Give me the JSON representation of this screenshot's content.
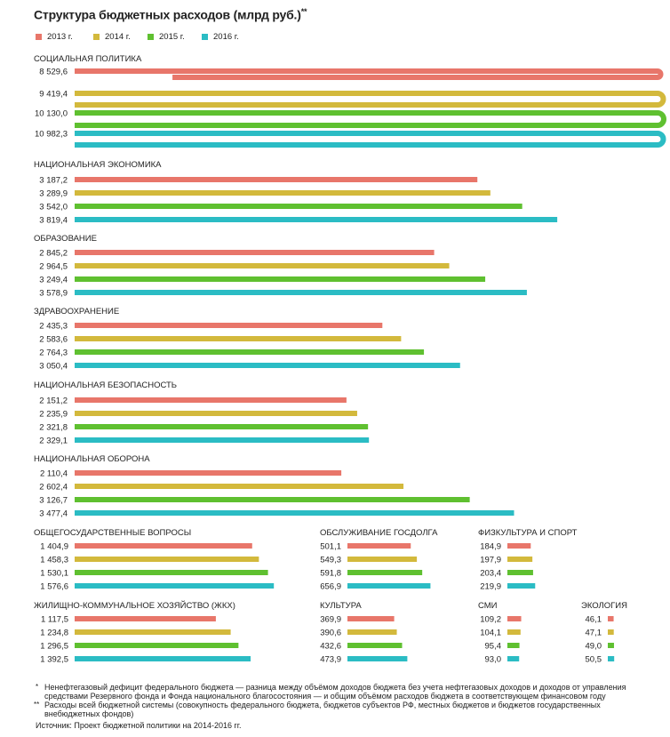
{
  "title": "Структура бюджетных расходов (млрд руб.)",
  "title_mark": "**",
  "colors": [
    "#e8766a",
    "#d3b93c",
    "#5fc030",
    "#2bbcc4"
  ],
  "chart_data": {
    "type": "bar",
    "title": "Структура бюджетных расходов (млрд руб.)",
    "unit": "млрд руб.",
    "legend": [
      "2013 г.",
      "2014 г.",
      "2015 г.",
      "2016 г."
    ],
    "groups": [
      {
        "name": "СОЦИАЛЬНАЯ ПОЛИТИКА",
        "values": [
          8529.6,
          9419.4,
          10130.0,
          10982.3
        ],
        "labels": [
          "8 529,6",
          "9 419,4",
          "10 130,0",
          "10 982,3"
        ]
      },
      {
        "name": "НАЦИОНАЛЬНАЯ ЭКОНОМИКА",
        "values": [
          3187.2,
          3289.9,
          3542.0,
          3819.4
        ],
        "labels": [
          "3 187,2",
          "3 289,9",
          "3 542,0",
          "3 819,4"
        ]
      },
      {
        "name": "ОБРАЗОВАНИЕ",
        "values": [
          2845.2,
          2964.5,
          3249.4,
          3578.9
        ],
        "labels": [
          "2 845,2",
          "2 964,5",
          "3 249,4",
          "3 578,9"
        ]
      },
      {
        "name": "ЗДРАВООХРАНЕНИЕ",
        "values": [
          2435.3,
          2583.6,
          2764.3,
          3050.4
        ],
        "labels": [
          "2 435,3",
          "2 583,6",
          "2 764,3",
          "3 050,4"
        ]
      },
      {
        "name": "НАЦИОНАЛЬНАЯ БЕЗОПАСНОСТЬ",
        "values": [
          2151.2,
          2235.9,
          2321.8,
          2329.1
        ],
        "labels": [
          "2 151,2",
          "2 235,9",
          "2 321,8",
          "2 329,1"
        ]
      },
      {
        "name": "НАЦИОНАЛЬНАЯ ОБОРОНА",
        "values": [
          2110.4,
          2602.4,
          3126.7,
          3477.4
        ],
        "labels": [
          "2 110,4",
          "2 602,4",
          "3 126,7",
          "3 477,4"
        ]
      },
      {
        "name": "ОБЩЕГОСУДАРСТВЕННЫЕ ВОПРОСЫ",
        "values": [
          1404.9,
          1458.3,
          1530.1,
          1576.6
        ],
        "labels": [
          "1 404,9",
          "1 458,3",
          "1 530,1",
          "1 576,6"
        ]
      },
      {
        "name": "ОБСЛУЖИВАНИЕ ГОСДОЛГА",
        "values": [
          501.1,
          549.3,
          591.8,
          656.9
        ],
        "labels": [
          "501,1",
          "549,3",
          "591,8",
          "656,9"
        ]
      },
      {
        "name": "ФИЗКУЛЬТУРА И СПОРТ",
        "values": [
          184.9,
          197.9,
          203.4,
          219.9
        ],
        "labels": [
          "184,9",
          "197,9",
          "203,4",
          "219,9"
        ]
      },
      {
        "name": "ЖИЛИЩНО-КОММУНАЛЬНОЕ ХОЗЯЙСТВО (ЖКХ)",
        "values": [
          1117.5,
          1234.8,
          1296.5,
          1392.5
        ],
        "labels": [
          "1 117,5",
          "1 234,8",
          "1 296,5",
          "1 392,5"
        ]
      },
      {
        "name": "КУЛЬТУРА",
        "values": [
          369.9,
          390.6,
          432.6,
          473.9
        ],
        "labels": [
          "369,9",
          "390,6",
          "432,6",
          "473,9"
        ]
      },
      {
        "name": "СМИ",
        "values": [
          109.2,
          104.1,
          95.4,
          93.0
        ],
        "labels": [
          "109,2",
          "104,1",
          "95,4",
          "93,0"
        ]
      },
      {
        "name": "ЭКОЛОГИЯ",
        "values": [
          46.1,
          47.1,
          49.0,
          50.5
        ],
        "labels": [
          "46,1",
          "47,1",
          "49,0",
          "50,5"
        ]
      }
    ]
  },
  "footnotes": [
    {
      "mark": "*",
      "text": "Ненефтегазовый дефицит федерального бюджета — разница между объёмом доходов бюджета без учета нефтегазовых доходов и доходов от управления средствами Резервного фонда и Фонда национального благосостояния — и общим объёмом расходов бюджета в соответствующем финансовом году"
    },
    {
      "mark": "**",
      "text": "Расходы всей бюджетной системы (совокупность федерального бюджета, бюджетов субъектов РФ, местных бюджетов и бюджетов государственных внебюджетных фондов)"
    }
  ],
  "source": "Источник: Проект бюджетной политики на 2014-2016 гг."
}
